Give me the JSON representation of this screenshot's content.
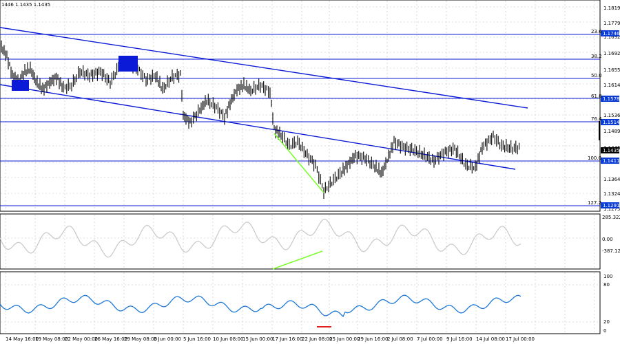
{
  "header": {
    "quote_text": "1446 1.1435 1.1435"
  },
  "price_axis": {
    "ticks": [
      "1.1819",
      "1.1779",
      "1.1746",
      "1.1692",
      "1.1655",
      "1.1614",
      "1.1578",
      "1.1536",
      "1.1514",
      "1.1489",
      "1.1446",
      "1.1411",
      "1.1364",
      "1.1324",
      "1.1291",
      "1.1275"
    ],
    "current_price": "1.1435",
    "hline_labels": [
      "1.1746",
      "1.1578",
      "1.1514",
      "1.1411",
      "1.1291"
    ]
  },
  "fib_labels": [
    "23.6",
    "38.2",
    "50.0",
    "61.8",
    "76.4",
    "100.0",
    "127.2"
  ],
  "cci_axis": {
    "ticks": [
      "285.322",
      "0.00",
      "-387.129"
    ]
  },
  "rsi_axis": {
    "ticks": [
      "100",
      "80",
      "20",
      "0"
    ]
  },
  "time_axis": {
    "labels": [
      "14 May 16:00",
      "19 May 08:00",
      "22 May 00:00",
      "26 May 16:00",
      "29 May 08:00",
      "3 Jun 00:00",
      "5 Jun 16:00",
      "10 Jun 08:00",
      "15 Jun 00:00",
      "17 Jun 16:00",
      "22 Jun 08:00",
      "25 Jun 00:00",
      "29 Jun 16:00",
      "2 Jul 08:00",
      "7 Jul 00:00",
      "9 Jul 16:00",
      "14 Jul 08:00",
      "17 Jul 00:00"
    ]
  },
  "colors": {
    "channel": "#0b1ad6",
    "candles": "#000000",
    "cci_line": "#c8c8c8",
    "rsi_line": "#1e78d6",
    "divergence": "#7cff2e",
    "marker": "#e02020",
    "grid": "#c0c0c0"
  }
}
